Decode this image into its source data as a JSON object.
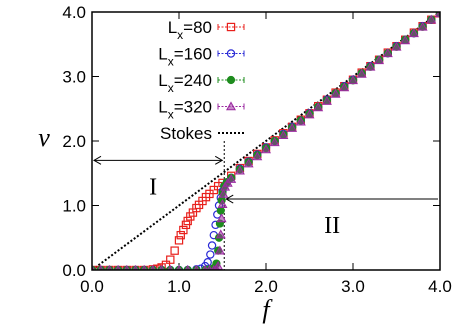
{
  "chart_data": {
    "type": "scatter",
    "xlabel": "f",
    "ylabel": "v",
    "xlim": [
      0,
      4
    ],
    "ylim": [
      0,
      4
    ],
    "xticks": [
      {
        "value": 0,
        "label": "0.0"
      },
      {
        "value": 1,
        "label": "1.0"
      },
      {
        "value": 2,
        "label": "2.0"
      },
      {
        "value": 3,
        "label": "3.0"
      },
      {
        "value": 4,
        "label": "4.0"
      }
    ],
    "yticks": [
      {
        "value": 0,
        "label": "0.0"
      },
      {
        "value": 1,
        "label": "1.0"
      },
      {
        "value": 2,
        "label": "2.0"
      },
      {
        "value": 3,
        "label": "3.0"
      },
      {
        "value": 4,
        "label": "4.0"
      }
    ],
    "legend_position": "top-left",
    "series": [
      {
        "name": "L",
        "subscript": "x",
        "suffix": "=80",
        "marker": "square",
        "color": "#e8201c",
        "points": [
          [
            0,
            0
          ],
          [
            0.1,
            0
          ],
          [
            0.2,
            0
          ],
          [
            0.3,
            0
          ],
          [
            0.4,
            0
          ],
          [
            0.5,
            0
          ],
          [
            0.6,
            0
          ],
          [
            0.7,
            0.01
          ],
          [
            0.75,
            0.02
          ],
          [
            0.8,
            0.04
          ],
          [
            0.85,
            0.08
          ],
          [
            0.9,
            0.16
          ],
          [
            0.95,
            0.3
          ],
          [
            1.0,
            0.46
          ],
          [
            1.02,
            0.54
          ],
          [
            1.05,
            0.62
          ],
          [
            1.08,
            0.7
          ],
          [
            1.1,
            0.76
          ],
          [
            1.13,
            0.83
          ],
          [
            1.16,
            0.89
          ],
          [
            1.2,
            0.96
          ],
          [
            1.23,
            1.01
          ],
          [
            1.27,
            1.07
          ],
          [
            1.31,
            1.13
          ],
          [
            1.35,
            1.18
          ],
          [
            1.4,
            1.24
          ],
          [
            1.45,
            1.3
          ],
          [
            1.5,
            1.35
          ],
          [
            1.6,
            1.46
          ],
          [
            1.7,
            1.58
          ],
          [
            1.8,
            1.69
          ],
          [
            1.9,
            1.8
          ],
          [
            2.0,
            1.9
          ],
          [
            2.1,
            2.01
          ],
          [
            2.2,
            2.12
          ],
          [
            2.3,
            2.22
          ],
          [
            2.4,
            2.33
          ],
          [
            2.5,
            2.43
          ],
          [
            2.6,
            2.54
          ],
          [
            2.7,
            2.64
          ],
          [
            2.8,
            2.75
          ],
          [
            2.9,
            2.85
          ],
          [
            3.0,
            2.95
          ],
          [
            3.1,
            3.06
          ],
          [
            3.2,
            3.16
          ],
          [
            3.3,
            3.26
          ],
          [
            3.4,
            3.37
          ],
          [
            3.5,
            3.47
          ],
          [
            3.6,
            3.57
          ],
          [
            3.7,
            3.68
          ],
          [
            3.8,
            3.78
          ],
          [
            3.9,
            3.88
          ],
          [
            4.0,
            3.98
          ]
        ]
      },
      {
        "name": "L",
        "subscript": "x",
        "suffix": "=160",
        "marker": "circle-open",
        "color": "#2a2ad6",
        "points": [
          [
            0,
            0
          ],
          [
            0.1,
            0
          ],
          [
            0.2,
            0
          ],
          [
            0.3,
            0
          ],
          [
            0.4,
            0
          ],
          [
            0.5,
            0
          ],
          [
            0.6,
            0
          ],
          [
            0.7,
            0
          ],
          [
            0.8,
            0
          ],
          [
            0.9,
            0
          ],
          [
            1.0,
            0
          ],
          [
            1.1,
            0
          ],
          [
            1.2,
            0.01
          ],
          [
            1.25,
            0.02
          ],
          [
            1.3,
            0.06
          ],
          [
            1.33,
            0.12
          ],
          [
            1.36,
            0.24
          ],
          [
            1.38,
            0.38
          ],
          [
            1.4,
            0.54
          ],
          [
            1.42,
            0.7
          ],
          [
            1.44,
            0.86
          ],
          [
            1.46,
            1.0
          ],
          [
            1.48,
            1.12
          ],
          [
            1.5,
            1.22
          ],
          [
            1.52,
            1.3
          ],
          [
            1.55,
            1.36
          ],
          [
            1.6,
            1.43
          ],
          [
            1.7,
            1.57
          ],
          [
            1.8,
            1.68
          ],
          [
            1.9,
            1.79
          ],
          [
            2.0,
            1.9
          ],
          [
            2.1,
            2.0
          ],
          [
            2.2,
            2.11
          ],
          [
            2.3,
            2.22
          ],
          [
            2.4,
            2.32
          ],
          [
            2.5,
            2.43
          ],
          [
            2.6,
            2.53
          ],
          [
            2.7,
            2.64
          ],
          [
            2.8,
            2.74
          ],
          [
            2.9,
            2.85
          ],
          [
            3.0,
            2.95
          ],
          [
            3.1,
            3.05
          ],
          [
            3.2,
            3.16
          ],
          [
            3.3,
            3.26
          ],
          [
            3.4,
            3.36
          ],
          [
            3.5,
            3.47
          ],
          [
            3.6,
            3.57
          ],
          [
            3.7,
            3.67
          ],
          [
            3.8,
            3.78
          ],
          [
            3.9,
            3.88
          ],
          [
            4.0,
            3.98
          ]
        ]
      },
      {
        "name": "L",
        "subscript": "x",
        "suffix": "=240",
        "marker": "circle-filled",
        "color": "#1e8c1e",
        "points": [
          [
            0,
            0
          ],
          [
            0.1,
            0
          ],
          [
            0.2,
            0
          ],
          [
            0.3,
            0
          ],
          [
            0.4,
            0
          ],
          [
            0.5,
            0
          ],
          [
            0.6,
            0
          ],
          [
            0.7,
            0
          ],
          [
            0.8,
            0
          ],
          [
            0.9,
            0
          ],
          [
            1.0,
            0
          ],
          [
            1.1,
            0
          ],
          [
            1.2,
            0
          ],
          [
            1.3,
            0
          ],
          [
            1.35,
            0.01
          ],
          [
            1.4,
            0.03
          ],
          [
            1.43,
            0.1
          ],
          [
            1.45,
            0.3
          ],
          [
            1.46,
            0.5
          ],
          [
            1.47,
            0.72
          ],
          [
            1.48,
            0.92
          ],
          [
            1.49,
            1.08
          ],
          [
            1.5,
            1.2
          ],
          [
            1.52,
            1.3
          ],
          [
            1.55,
            1.36
          ],
          [
            1.6,
            1.43
          ],
          [
            1.7,
            1.56
          ],
          [
            1.8,
            1.67
          ],
          [
            1.9,
            1.78
          ],
          [
            2.0,
            1.89
          ],
          [
            2.1,
            2.0
          ],
          [
            2.2,
            2.1
          ],
          [
            2.3,
            2.21
          ],
          [
            2.4,
            2.32
          ],
          [
            2.5,
            2.42
          ],
          [
            2.6,
            2.53
          ],
          [
            2.7,
            2.63
          ],
          [
            2.8,
            2.74
          ],
          [
            2.9,
            2.84
          ],
          [
            3.0,
            2.94
          ],
          [
            3.1,
            3.05
          ],
          [
            3.2,
            3.15
          ],
          [
            3.3,
            3.26
          ],
          [
            3.4,
            3.36
          ],
          [
            3.5,
            3.46
          ],
          [
            3.6,
            3.57
          ],
          [
            3.7,
            3.67
          ],
          [
            3.8,
            3.77
          ],
          [
            3.9,
            3.88
          ],
          [
            4.0,
            3.98
          ]
        ]
      },
      {
        "name": "L",
        "subscript": "x",
        "suffix": "=320",
        "marker": "triangle",
        "color": "#9b2aa0",
        "points": [
          [
            0,
            0
          ],
          [
            0.1,
            0
          ],
          [
            0.2,
            0
          ],
          [
            0.3,
            0
          ],
          [
            0.4,
            0
          ],
          [
            0.5,
            0
          ],
          [
            0.6,
            0
          ],
          [
            0.7,
            0
          ],
          [
            0.8,
            0
          ],
          [
            0.9,
            0
          ],
          [
            1.0,
            0
          ],
          [
            1.1,
            0
          ],
          [
            1.2,
            0
          ],
          [
            1.3,
            0
          ],
          [
            1.35,
            0
          ],
          [
            1.4,
            0
          ],
          [
            1.43,
            0.02
          ],
          [
            1.45,
            0.06
          ],
          [
            1.47,
            0.3
          ],
          [
            1.48,
            0.55
          ],
          [
            1.49,
            0.8
          ],
          [
            1.5,
            1.02
          ],
          [
            1.51,
            1.18
          ],
          [
            1.53,
            1.29
          ],
          [
            1.56,
            1.35
          ],
          [
            1.6,
            1.41
          ],
          [
            1.7,
            1.54
          ],
          [
            1.8,
            1.65
          ],
          [
            1.9,
            1.76
          ],
          [
            2.0,
            1.87
          ],
          [
            2.1,
            1.98
          ],
          [
            2.2,
            2.09
          ],
          [
            2.3,
            2.2
          ],
          [
            2.4,
            2.3
          ],
          [
            2.5,
            2.41
          ],
          [
            2.6,
            2.52
          ],
          [
            2.7,
            2.62
          ],
          [
            2.8,
            2.73
          ],
          [
            2.9,
            2.83
          ],
          [
            3.0,
            2.94
          ],
          [
            3.1,
            3.04
          ],
          [
            3.2,
            3.15
          ],
          [
            3.3,
            3.25
          ],
          [
            3.4,
            3.36
          ],
          [
            3.5,
            3.46
          ],
          [
            3.6,
            3.56
          ],
          [
            3.7,
            3.67
          ],
          [
            3.8,
            3.77
          ],
          [
            3.9,
            3.88
          ],
          [
            4.0,
            3.98
          ]
        ]
      }
    ],
    "stokes": {
      "name": "Stokes",
      "slope": 1.0,
      "color": "#000000"
    },
    "threshold": {
      "value": 1.52
    },
    "regions": [
      {
        "label": "I",
        "from": 0,
        "to": 1.52,
        "y": 1.7
      },
      {
        "label": "II",
        "from": 1.52,
        "to": 4.0,
        "y": 1.1
      }
    ]
  }
}
